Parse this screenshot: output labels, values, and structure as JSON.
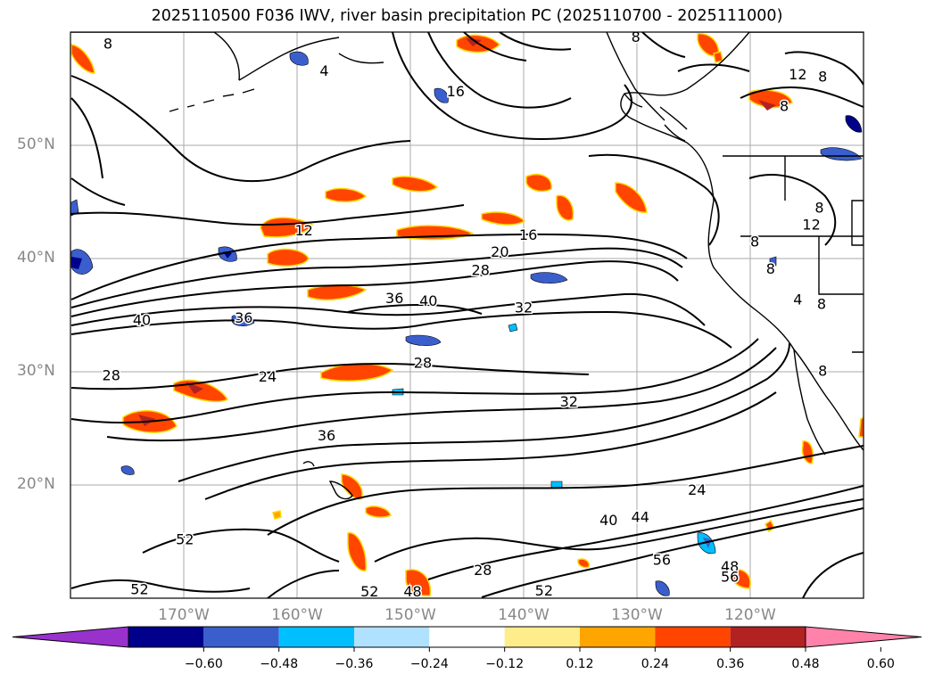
{
  "title": "2025110500 F036 IWV, river basin precipitation PC (2025110700 - 2025111000)",
  "map": {
    "lon_range": [
      -180,
      -110
    ],
    "lat_range": [
      10,
      60
    ],
    "grid": true,
    "lat_ticks": [
      {
        "value": 50,
        "label": "50°N"
      },
      {
        "value": 40,
        "label": "40°N"
      },
      {
        "value": 30,
        "label": "30°N"
      },
      {
        "value": 20,
        "label": "20°N"
      }
    ],
    "lon_ticks": [
      {
        "value": -170,
        "label": "170°W"
      },
      {
        "value": -160,
        "label": "160°W"
      },
      {
        "value": -150,
        "label": "150°W"
      },
      {
        "value": -140,
        "label": "140°W"
      },
      {
        "value": -130,
        "label": "130°W"
      },
      {
        "value": -120,
        "label": "120°W"
      }
    ],
    "iwv_contour_labels": [
      {
        "text": "8",
        "lon": -176.7,
        "lat": 58.9
      },
      {
        "text": "4",
        "lon": -157.6,
        "lat": 56.5
      },
      {
        "text": "8",
        "lon": -130.1,
        "lat": 59.5
      },
      {
        "text": "16",
        "lon": -146.0,
        "lat": 54.7
      },
      {
        "text": "12",
        "lon": -115.8,
        "lat": 56.2
      },
      {
        "text": "8",
        "lon": -113.6,
        "lat": 56.0
      },
      {
        "text": "8",
        "lon": -117.0,
        "lat": 53.4
      },
      {
        "text": "12",
        "lon": -159.4,
        "lat": 42.4
      },
      {
        "text": "16",
        "lon": -139.6,
        "lat": 42.0
      },
      {
        "text": "20",
        "lon": -142.1,
        "lat": 40.5
      },
      {
        "text": "28",
        "lon": -143.8,
        "lat": 38.9
      },
      {
        "text": "36",
        "lon": -151.4,
        "lat": 36.4
      },
      {
        "text": "40",
        "lon": -148.4,
        "lat": 36.2
      },
      {
        "text": "32",
        "lon": -140.0,
        "lat": 35.6
      },
      {
        "text": "40",
        "lon": -173.7,
        "lat": 34.5
      },
      {
        "text": "36",
        "lon": -164.7,
        "lat": 34.7
      },
      {
        "text": "28",
        "lon": -148.9,
        "lat": 30.7
      },
      {
        "text": "28",
        "lon": -176.4,
        "lat": 29.6
      },
      {
        "text": "24",
        "lon": -162.6,
        "lat": 29.5
      },
      {
        "text": "32",
        "lon": -136.0,
        "lat": 27.3
      },
      {
        "text": "36",
        "lon": -157.4,
        "lat": 24.3
      },
      {
        "text": "24",
        "lon": -124.7,
        "lat": 19.5
      },
      {
        "text": "40",
        "lon": -132.5,
        "lat": 16.8
      },
      {
        "text": "44",
        "lon": -129.7,
        "lat": 17.1
      },
      {
        "text": "52",
        "lon": -169.9,
        "lat": 15.1
      },
      {
        "text": "56",
        "lon": -127.8,
        "lat": 13.3
      },
      {
        "text": "48",
        "lon": -121.8,
        "lat": 12.7
      },
      {
        "text": "56",
        "lon": -121.8,
        "lat": 11.8
      },
      {
        "text": "28",
        "lon": -143.6,
        "lat": 12.4
      },
      {
        "text": "52",
        "lon": -138.2,
        "lat": 10.6
      },
      {
        "text": "52",
        "lon": -173.9,
        "lat": 10.7
      },
      {
        "text": "52",
        "lon": -153.6,
        "lat": 10.5
      },
      {
        "text": "48",
        "lon": -149.8,
        "lat": 10.5
      },
      {
        "text": "8",
        "lon": -113.9,
        "lat": 44.4
      },
      {
        "text": "12",
        "lon": -114.6,
        "lat": 42.9
      },
      {
        "text": "8",
        "lon": -119.6,
        "lat": 41.4
      },
      {
        "text": "8",
        "lon": -118.2,
        "lat": 39.0
      },
      {
        "text": "4",
        "lon": -115.8,
        "lat": 36.3
      },
      {
        "text": "8",
        "lon": -113.7,
        "lat": 35.9
      },
      {
        "text": "8",
        "lon": -113.6,
        "lat": 30.0
      }
    ]
  },
  "colorbar": {
    "colors": [
      "#9932cc",
      "#00008b",
      "#3a5fcd",
      "#00bfff",
      "#b0e2ff",
      "#ffffff",
      "#ffec8b",
      "#ffa500",
      "#ff4500",
      "#b22222",
      "#ff82ab"
    ],
    "tick_labels": [
      "−0.60",
      "−0.48",
      "−0.36",
      "−0.24",
      "−0.12",
      "0.12",
      "0.24",
      "0.36",
      "0.48",
      "0.60"
    ],
    "extend": "both"
  }
}
